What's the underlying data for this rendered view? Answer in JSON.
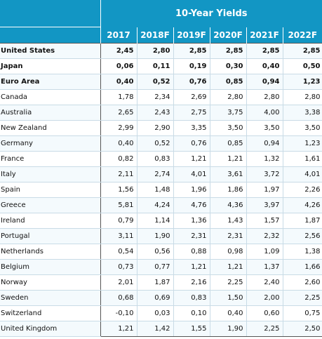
{
  "table": {
    "title": "10-Year Yields",
    "columns": [
      "2017",
      "2018F",
      "2019F",
      "2020F",
      "2021F",
      "2022F"
    ],
    "rows": [
      {
        "name": "United States",
        "bold": true,
        "values": [
          "2,45",
          "2,80",
          "2,85",
          "2,85",
          "2,85",
          "2,85"
        ]
      },
      {
        "name": "Japan",
        "bold": true,
        "values": [
          "0,06",
          "0,11",
          "0,19",
          "0,30",
          "0,40",
          "0,50"
        ]
      },
      {
        "name": "Euro Area",
        "bold": true,
        "values": [
          "0,40",
          "0,52",
          "0,76",
          "0,85",
          "0,94",
          "1,23"
        ]
      },
      {
        "name": "Canada",
        "bold": false,
        "values": [
          "1,78",
          "2,34",
          "2,69",
          "2,80",
          "2,80",
          "2,80"
        ]
      },
      {
        "name": "Australia",
        "bold": false,
        "values": [
          "2,65",
          "2,43",
          "2,75",
          "3,75",
          "4,00",
          "3,38"
        ]
      },
      {
        "name": "New Zealand",
        "bold": false,
        "values": [
          "2,99",
          "2,90",
          "3,35",
          "3,50",
          "3,50",
          "3,50"
        ]
      },
      {
        "name": "Germany",
        "bold": false,
        "values": [
          "0,40",
          "0,52",
          "0,76",
          "0,85",
          "0,94",
          "1,23"
        ]
      },
      {
        "name": "France",
        "bold": false,
        "values": [
          "0,82",
          "0,83",
          "1,21",
          "1,21",
          "1,32",
          "1,61"
        ]
      },
      {
        "name": "Italy",
        "bold": false,
        "values": [
          "2,11",
          "2,74",
          "4,01",
          "3,61",
          "3,72",
          "4,01"
        ]
      },
      {
        "name": "Spain",
        "bold": false,
        "values": [
          "1,56",
          "1,48",
          "1,96",
          "1,86",
          "1,97",
          "2,26"
        ]
      },
      {
        "name": "Greece",
        "bold": false,
        "values": [
          "5,81",
          "4,24",
          "4,76",
          "4,36",
          "3,97",
          "4,26"
        ]
      },
      {
        "name": "Ireland",
        "bold": false,
        "values": [
          "0,79",
          "1,14",
          "1,36",
          "1,43",
          "1,57",
          "1,87"
        ]
      },
      {
        "name": "Portugal",
        "bold": false,
        "values": [
          "3,11",
          "1,90",
          "2,31",
          "2,31",
          "2,32",
          "2,56"
        ]
      },
      {
        "name": "Netherlands",
        "bold": false,
        "values": [
          "0,54",
          "0,56",
          "0,88",
          "0,98",
          "1,09",
          "1,38"
        ]
      },
      {
        "name": "Belgium",
        "bold": false,
        "values": [
          "0,73",
          "0,77",
          "1,21",
          "1,21",
          "1,37",
          "1,66"
        ]
      },
      {
        "name": "Norway",
        "bold": false,
        "values": [
          "2,01",
          "1,87",
          "2,16",
          "2,25",
          "2,40",
          "2,60"
        ]
      },
      {
        "name": "Sweden",
        "bold": false,
        "values": [
          "0,68",
          "0,69",
          "0,83",
          "1,50",
          "2,00",
          "2,25"
        ]
      },
      {
        "name": "Switzerland",
        "bold": false,
        "values": [
          "-0,10",
          "0,03",
          "0,10",
          "0,40",
          "0,60",
          "0,75"
        ]
      },
      {
        "name": "United Kingdom",
        "bold": false,
        "values": [
          "1,21",
          "1,42",
          "1,55",
          "1,90",
          "2,25",
          "2,50"
        ]
      }
    ]
  },
  "colors": {
    "header_bg": "#1296c4",
    "header_text": "#ffffff",
    "stripe": "#f4fafd"
  }
}
